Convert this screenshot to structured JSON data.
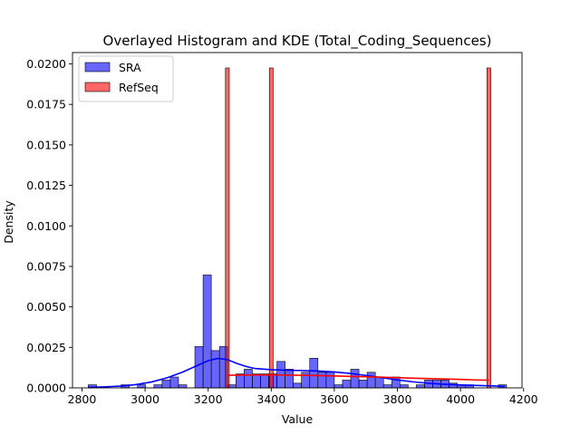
{
  "chart_data": {
    "type": "histogram+kde",
    "title": "Overlayed Histogram and KDE (Total_Coding_Sequences)",
    "xlabel": "Value",
    "ylabel": "Density",
    "xlim": [
      2770,
      4195
    ],
    "ylim": [
      0,
      0.0207
    ],
    "xticks": [
      2800,
      3000,
      3200,
      3400,
      3600,
      3800,
      4000,
      4200
    ],
    "xtick_labels": [
      "2800",
      "3000",
      "3200",
      "3400",
      "3600",
      "3800",
      "4000",
      "4200"
    ],
    "yticks": [
      0,
      0.0025,
      0.005,
      0.0075,
      0.01,
      0.0125,
      0.015,
      0.0175,
      0.02
    ],
    "ytick_labels": [
      "0.0000",
      "0.0025",
      "0.0050",
      "0.0075",
      "0.0100",
      "0.0125",
      "0.0150",
      "0.0175",
      "0.0200"
    ],
    "grid": false,
    "legend_position": "top-left",
    "series": [
      {
        "name": "SRA",
        "color": "#0000ff",
        "fill_opacity": 0.6,
        "bin_width": 26,
        "bins": [
          {
            "x": 2820,
            "y": 0.00019
          },
          {
            "x": 2924,
            "y": 0.00019
          },
          {
            "x": 2976,
            "y": 0.00019
          },
          {
            "x": 3028,
            "y": 0.00019
          },
          {
            "x": 3054,
            "y": 0.00048
          },
          {
            "x": 3080,
            "y": 0.00067
          },
          {
            "x": 3106,
            "y": 0.00019
          },
          {
            "x": 3158,
            "y": 0.00255
          },
          {
            "x": 3184,
            "y": 0.00697
          },
          {
            "x": 3210,
            "y": 0.0023
          },
          {
            "x": 3236,
            "y": 0.00255
          },
          {
            "x": 3262,
            "y": 0.00019
          },
          {
            "x": 3288,
            "y": 0.00086
          },
          {
            "x": 3314,
            "y": 0.00115
          },
          {
            "x": 3340,
            "y": 0.00086
          },
          {
            "x": 3366,
            "y": 0.00086
          },
          {
            "x": 3392,
            "y": 0.00086
          },
          {
            "x": 3418,
            "y": 0.00163
          },
          {
            "x": 3444,
            "y": 0.00115
          },
          {
            "x": 3470,
            "y": 0.00029
          },
          {
            "x": 3496,
            "y": 0.00096
          },
          {
            "x": 3522,
            "y": 0.00183
          },
          {
            "x": 3548,
            "y": 0.00096
          },
          {
            "x": 3574,
            "y": 0.00096
          },
          {
            "x": 3600,
            "y": 0.00019
          },
          {
            "x": 3626,
            "y": 0.00048
          },
          {
            "x": 3652,
            "y": 0.00115
          },
          {
            "x": 3678,
            "y": 0.00048
          },
          {
            "x": 3704,
            "y": 0.00096
          },
          {
            "x": 3730,
            "y": 0.00067
          },
          {
            "x": 3756,
            "y": 0.00019
          },
          {
            "x": 3782,
            "y": 0.00067
          },
          {
            "x": 3808,
            "y": 0.00019
          },
          {
            "x": 3860,
            "y": 0.00019
          },
          {
            "x": 3886,
            "y": 0.00048
          },
          {
            "x": 3912,
            "y": 0.00048
          },
          {
            "x": 3938,
            "y": 0.00048
          },
          {
            "x": 3964,
            "y": 0.00029
          },
          {
            "x": 3990,
            "y": 0.00019
          },
          {
            "x": 4016,
            "y": 0.00019
          },
          {
            "x": 4120,
            "y": 0.00019
          }
        ],
        "kde": {
          "x": [
            2820,
            2870,
            2920,
            2970,
            3020,
            3070,
            3120,
            3170,
            3200,
            3230,
            3260,
            3290,
            3320,
            3350,
            3400,
            3450,
            3500,
            3550,
            3600,
            3650,
            3700,
            3750,
            3800,
            3850,
            3900,
            3950,
            4000,
            4050,
            4100,
            4140
          ],
          "y": [
            3e-05,
            6e-05,
            0.00011,
            0.0002,
            0.00036,
            0.00062,
            0.00098,
            0.00142,
            0.00168,
            0.00182,
            0.00175,
            0.00152,
            0.00132,
            0.00119,
            0.00112,
            0.00109,
            0.00107,
            0.00104,
            0.00098,
            0.00089,
            0.00077,
            0.00063,
            0.00049,
            0.00037,
            0.00028,
            0.00022,
            0.00018,
            0.00015,
            0.00012,
            9e-05
          ]
        }
      },
      {
        "name": "RefSeq",
        "color": "#ff0000",
        "fill_opacity": 0.6,
        "bin_width": 12,
        "bins": [
          {
            "x": 3255,
            "y": 0.01975
          },
          {
            "x": 3394,
            "y": 0.01975
          },
          {
            "x": 4084,
            "y": 0.01975
          }
        ],
        "kde": {
          "x": [
            3261,
            3350,
            3450,
            3550,
            3650,
            3750,
            3850,
            3950,
            4050,
            4090
          ],
          "y": [
            0.00078,
            0.0008,
            0.00079,
            0.00076,
            0.00071,
            0.00066,
            0.0006,
            0.00055,
            0.00049,
            0.00047
          ]
        }
      }
    ]
  }
}
